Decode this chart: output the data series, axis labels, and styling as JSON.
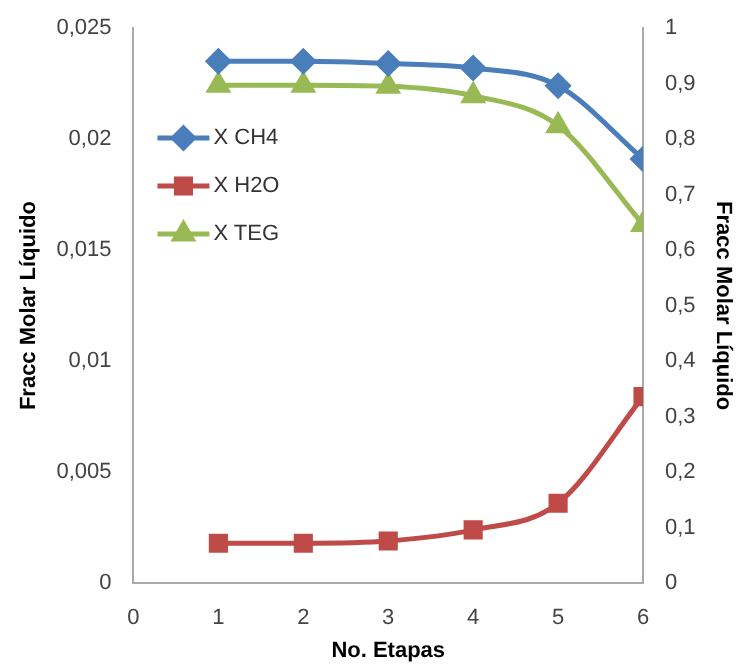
{
  "chart_data": {
    "type": "line",
    "xlabel": "No. Etapas",
    "ylabel": "Fracc Molar Líquido",
    "y2label": "Fracc Molar Líquido",
    "x": [
      1,
      2,
      3,
      4,
      5,
      6
    ],
    "series": [
      {
        "name": "X CH4",
        "color": "#4a7ebb",
        "marker": "diamond",
        "values": [
          0.0235,
          0.0235,
          0.0234,
          0.0232,
          0.0224,
          0.0191
        ]
      },
      {
        "name": "X H2O",
        "color": "#be4b48",
        "marker": "square",
        "values": [
          0.0018,
          0.0018,
          0.0019,
          0.0024,
          0.0036,
          0.0084
        ]
      },
      {
        "name": "X TEG",
        "color": "#98b954",
        "marker": "triangle",
        "axis": "y2",
        "values": [
          0.897,
          0.897,
          0.895,
          0.878,
          0.824,
          0.646
        ]
      }
    ],
    "xlim": [
      0,
      6
    ],
    "xticks": [
      0,
      1,
      2,
      3,
      4,
      5,
      6
    ],
    "ylim": [
      0,
      0.025
    ],
    "yticks": [
      0,
      {
        "value": 0.005,
        "label": "0,005"
      },
      {
        "value": 0.01,
        "label": "0,01"
      },
      {
        "value": 0.015,
        "label": "0,015"
      },
      {
        "value": 0.02,
        "label": "0,02"
      },
      {
        "value": 0.025,
        "label": "0,025"
      }
    ],
    "y2lim": [
      0,
      1
    ],
    "y2ticks": [
      0,
      {
        "value": 0.1,
        "label": "0,1"
      },
      {
        "value": 0.2,
        "label": "0,2"
      },
      {
        "value": 0.3,
        "label": "0,3"
      },
      {
        "value": 0.4,
        "label": "0,4"
      },
      {
        "value": 0.5,
        "label": "0,5"
      },
      {
        "value": 0.6,
        "label": "0,6"
      },
      {
        "value": 0.7,
        "label": "0,7"
      },
      {
        "value": 0.8,
        "label": "0,8"
      },
      {
        "value": 0.9,
        "label": "0,9"
      },
      1
    ],
    "grid": false,
    "legend": "left"
  }
}
